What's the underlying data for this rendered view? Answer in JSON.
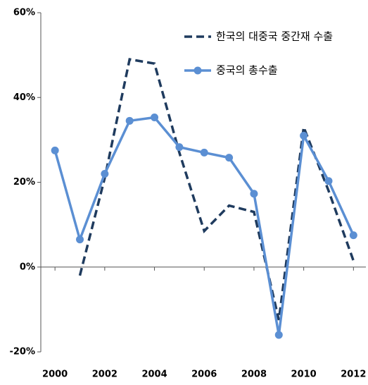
{
  "chart_data": {
    "type": "line",
    "x": [
      2000,
      2001,
      2002,
      2003,
      2004,
      2005,
      2006,
      2007,
      2008,
      2009,
      2010,
      2011,
      2012
    ],
    "series": [
      {
        "name": "한국의 대중국 중간재 수출",
        "color": "#1f3b5e",
        "dash": true,
        "marker": false,
        "values": [
          null,
          -2,
          21,
          49,
          48,
          27,
          8.5,
          14.5,
          13,
          -12.5,
          33,
          18,
          1.5
        ]
      },
      {
        "name": "중국의 총수출",
        "color": "#5b8fd3",
        "dash": false,
        "marker": true,
        "values": [
          27.5,
          6.5,
          22,
          34.5,
          35.3,
          28.3,
          27,
          25.8,
          17.3,
          -16,
          31,
          20.3,
          7.5
        ]
      }
    ],
    "xlim": [
      1999.43,
      2012.5
    ],
    "xticks": [
      2000,
      2002,
      2004,
      2006,
      2008,
      2010,
      2012
    ],
    "ylim": [
      -20,
      60
    ],
    "yticks": [
      {
        "value": -20,
        "label": "-20%"
      },
      {
        "value": 0,
        "label": "0%"
      },
      {
        "value": 20,
        "label": "20%"
      },
      {
        "value": 40,
        "label": "40%"
      },
      {
        "value": 60,
        "label": "60%"
      }
    ],
    "grid": false,
    "legend": "top-right"
  }
}
